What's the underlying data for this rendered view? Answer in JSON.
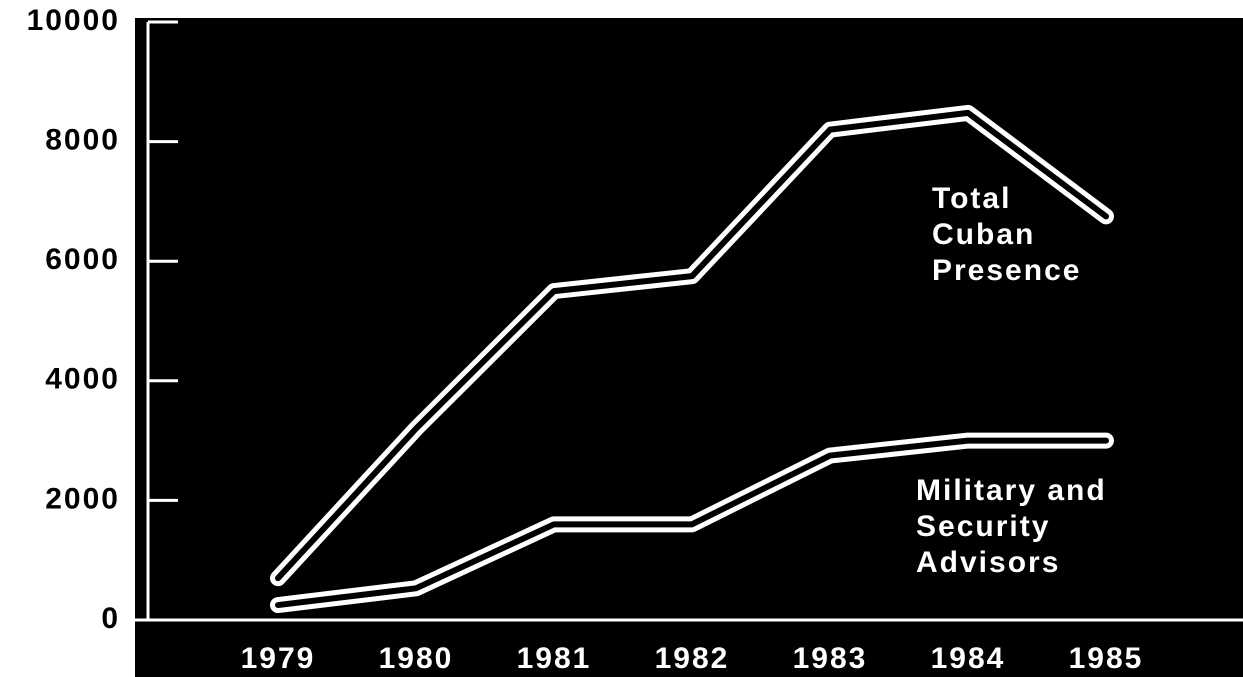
{
  "chart_data": {
    "type": "line",
    "categories": [
      "1979",
      "1980",
      "1981",
      "1982",
      "1983",
      "1984",
      "1985"
    ],
    "series": [
      {
        "name": "Total Cuban Presence",
        "color": "#ffffff",
        "values": [
          700,
          3200,
          5500,
          5750,
          8200,
          8480,
          6750
        ]
      },
      {
        "name": "Military and Security Advisors",
        "color": "#ffffff",
        "values": [
          250,
          530,
          1600,
          1600,
          2750,
          3000,
          3000
        ]
      }
    ],
    "ylim": [
      0,
      10000
    ],
    "yticks": [
      0,
      2000,
      4000,
      6000,
      8000,
      10000
    ]
  }
}
